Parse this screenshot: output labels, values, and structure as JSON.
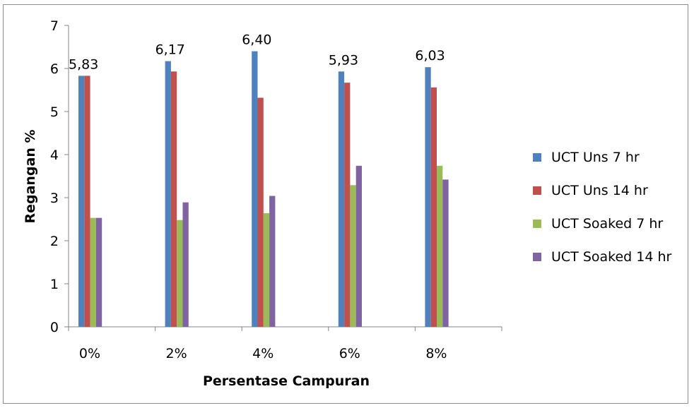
{
  "chart_data": {
    "type": "bar",
    "xlabel": "Persentase Campuran",
    "ylabel": "Regangan %",
    "ylim": [
      0,
      7
    ],
    "yticks": [
      "0",
      "1",
      "2",
      "3",
      "4",
      "5",
      "6",
      "7"
    ],
    "categories": [
      "0%",
      "2%",
      "4%",
      "6%",
      "8%"
    ],
    "series": [
      {
        "name": "UCT Uns 7 hr",
        "color": "#4f81bd",
        "values": [
          5.83,
          6.17,
          6.4,
          5.93,
          6.03
        ]
      },
      {
        "name": "UCT Uns 14 hr",
        "color": "#c0504d",
        "values": [
          5.83,
          5.93,
          5.32,
          5.67,
          5.56
        ]
      },
      {
        "name": "UCT Soaked 7 hr",
        "color": "#9bbb59",
        "values": [
          2.53,
          2.48,
          2.64,
          3.29,
          3.74
        ]
      },
      {
        "name": "UCT Soaked 14 hr",
        "color": "#8064a2",
        "values": [
          2.53,
          2.89,
          3.04,
          3.74,
          3.42
        ]
      }
    ],
    "data_labels": [
      "5,83",
      "6,17",
      "6,40",
      "5,93",
      "6,03"
    ],
    "legend": "right",
    "grid": false
  }
}
